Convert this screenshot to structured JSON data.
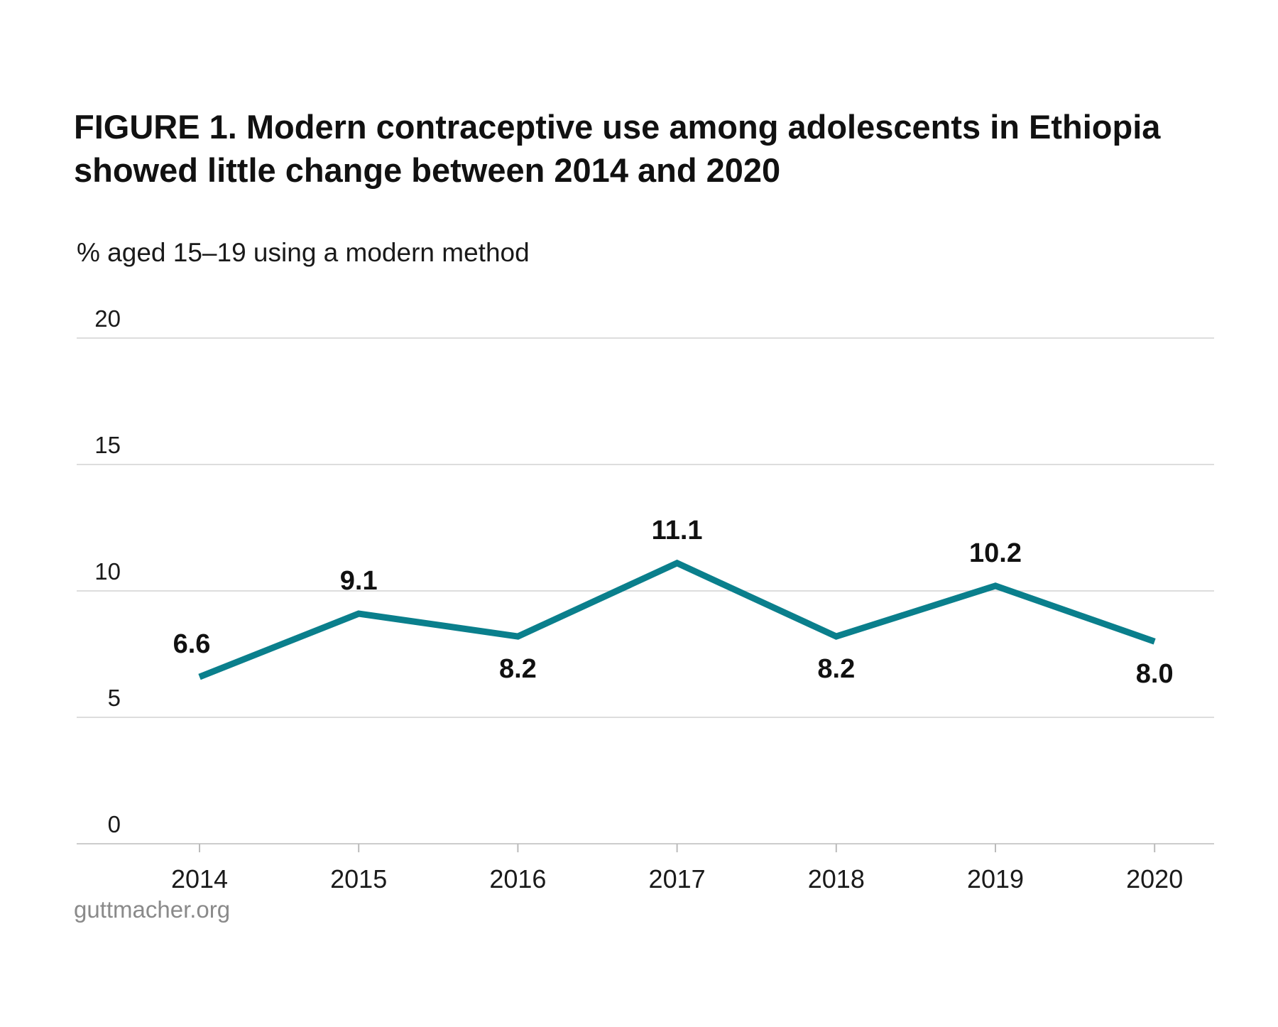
{
  "chart_data": {
    "type": "line",
    "title": "FIGURE 1. Modern contraceptive use among adolescents in Ethiopia showed little change between 2014 and 2020",
    "ylabel": "% aged 15–19 using a modern method",
    "xlabel": "",
    "x": [
      "2014",
      "2015",
      "2016",
      "2017",
      "2018",
      "2019",
      "2020"
    ],
    "series": [
      {
        "values": [
          6.6,
          9.1,
          8.2,
          11.1,
          8.2,
          10.2,
          8.0
        ],
        "labels": [
          "6.6",
          "9.1",
          "8.2",
          "11.1",
          "8.2",
          "10.2",
          "8.0"
        ],
        "label_position": [
          "above",
          "above",
          "below",
          "above",
          "below",
          "above",
          "below"
        ]
      }
    ],
    "ylim": [
      0,
      20
    ],
    "yticks": [
      "0",
      "5",
      "10",
      "15",
      "20"
    ],
    "grid": true,
    "line_color": "#0a7f8c",
    "grid_color": "#dddddd"
  },
  "source": "guttmacher.org"
}
